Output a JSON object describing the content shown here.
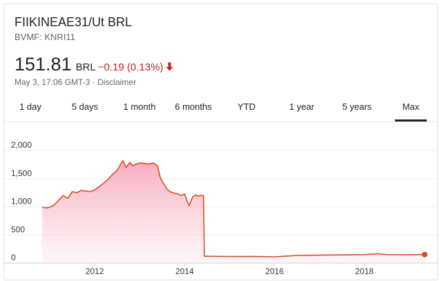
{
  "quote": {
    "title": "FIIKINEAE31/Ut BRL",
    "exchange": "BVMF: KNRI11",
    "price": "151.81",
    "currency": "BRL",
    "change": "−0.19 (0.13%)",
    "timestamp": "May 3, 17:06 GMT-3",
    "separator": " · ",
    "disclaimer": "Disclaimer",
    "change_color": "#c5221f",
    "direction_icon": "arrow-down-icon"
  },
  "tabs": [
    {
      "label": "1 day",
      "active": false
    },
    {
      "label": "5 days",
      "active": false
    },
    {
      "label": "1 month",
      "active": false
    },
    {
      "label": "6 months",
      "active": false
    },
    {
      "label": "YTD",
      "active": false
    },
    {
      "label": "1 year",
      "active": false
    },
    {
      "label": "5 years",
      "active": false
    },
    {
      "label": "Max",
      "active": true
    }
  ],
  "chart_data": {
    "type": "area",
    "title": "",
    "xlabel": "",
    "ylabel": "",
    "xlim": [
      2010.83,
      2019.34
    ],
    "ylim": [
      0,
      2000
    ],
    "y_ticks": [
      0,
      500,
      1000,
      1500,
      2000
    ],
    "y_tick_labels": [
      "0",
      "500",
      "1,000",
      "1,500",
      "2,000"
    ],
    "x_ticks": [
      2012,
      2014,
      2016,
      2018
    ],
    "x_tick_labels": [
      "2012",
      "2014",
      "2016",
      "2018"
    ],
    "grid": true,
    "line_color": "#dd4b24",
    "fill_color": "#f8b9c5",
    "series": [
      {
        "x": [
          2010.83,
          2010.95,
          2011.05,
          2011.12,
          2011.2,
          2011.3,
          2011.4,
          2011.5,
          2011.6,
          2011.7,
          2011.8,
          2011.9,
          2012.0,
          2012.1,
          2012.2,
          2012.3,
          2012.4,
          2012.5,
          2012.58,
          2012.63,
          2012.7,
          2012.78,
          2012.85,
          2012.92,
          2013.0,
          2013.1,
          2013.2,
          2013.3,
          2013.4,
          2013.45,
          2013.5,
          2013.55,
          2013.62,
          2013.7,
          2013.78,
          2013.85,
          2013.92,
          2014.0,
          2014.05,
          2014.1,
          2014.18,
          2014.25,
          2014.3,
          2014.36,
          2014.42,
          2014.44,
          2014.6,
          2015.0,
          2015.5,
          2016.0,
          2016.3,
          2016.5,
          2017.0,
          2017.5,
          2018.0,
          2018.3,
          2018.5,
          2019.0,
          2019.34
        ],
        "y": [
          990,
          980,
          1010,
          1050,
          1120,
          1200,
          1150,
          1270,
          1250,
          1290,
          1280,
          1270,
          1300,
          1360,
          1420,
          1490,
          1580,
          1650,
          1760,
          1820,
          1700,
          1790,
          1730,
          1760,
          1780,
          1770,
          1760,
          1780,
          1720,
          1540,
          1450,
          1390,
          1300,
          1260,
          1240,
          1230,
          1200,
          1230,
          1110,
          1020,
          1180,
          1210,
          1190,
          1200,
          1200,
          120,
          120,
          115,
          118,
          110,
          125,
          135,
          140,
          145,
          150,
          165,
          150,
          148,
          152
        ]
      }
    ],
    "last_point_marker": true
  }
}
